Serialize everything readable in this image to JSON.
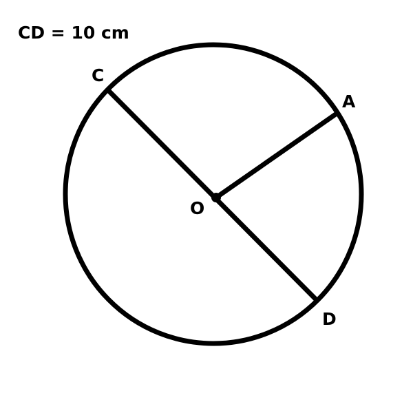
{
  "given": "CD = 10 cm",
  "points": {
    "center": "O",
    "a": "A",
    "c": "C",
    "d": "D"
  },
  "colors": {
    "stroke": "#000000",
    "background": "#ffffff"
  }
}
